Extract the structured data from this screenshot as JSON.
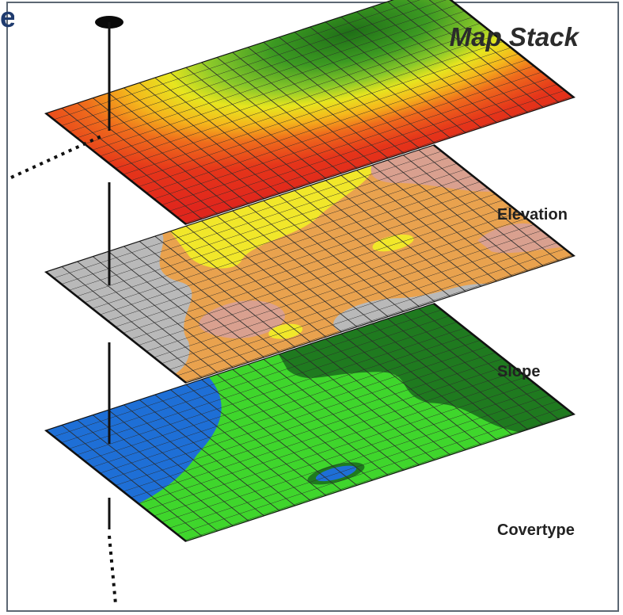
{
  "title": "Map Stack",
  "edge_glyph": "e",
  "layers": [
    {
      "label": "Elevation"
    },
    {
      "label": "Slope"
    },
    {
      "label": "Covertype"
    }
  ],
  "colors": {
    "frame": "#5c6773",
    "elevation_red": "#e0261c",
    "elevation_orange": "#ee6a1a",
    "elevation_yellow": "#f2e21e",
    "elevation_green": "#2f8a1c",
    "slope_gray": "#b9b9b9",
    "slope_tan": "#e9a24e",
    "slope_pink": "#d9a08f",
    "slope_yellow": "#f1e72a",
    "cover_blue": "#1e6fd6",
    "cover_lightgreen": "#3fd62c",
    "cover_darkgreen": "#1f7a1f"
  }
}
